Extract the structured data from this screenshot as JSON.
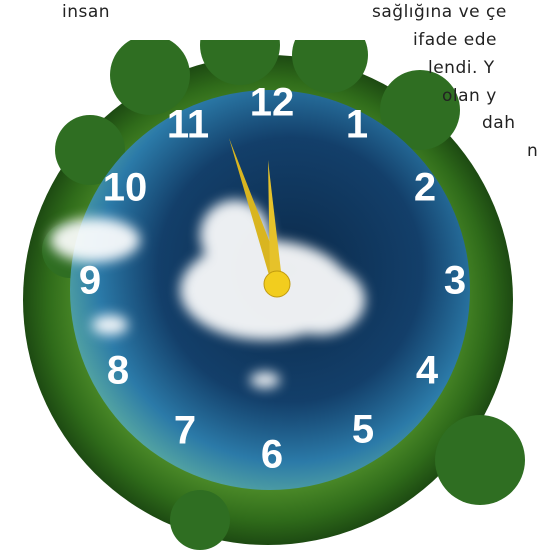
{
  "text_lines": [
    "insan",
    "sağlığına ve çe",
    "ifade ede",
    "lendi. Y",
    "olan y",
    "dah",
    "n"
  ],
  "clock": {
    "numbers": [
      "12",
      "1",
      "2",
      "3",
      "4",
      "5",
      "6",
      "7",
      "8",
      "9",
      "10",
      "11"
    ]
  }
}
